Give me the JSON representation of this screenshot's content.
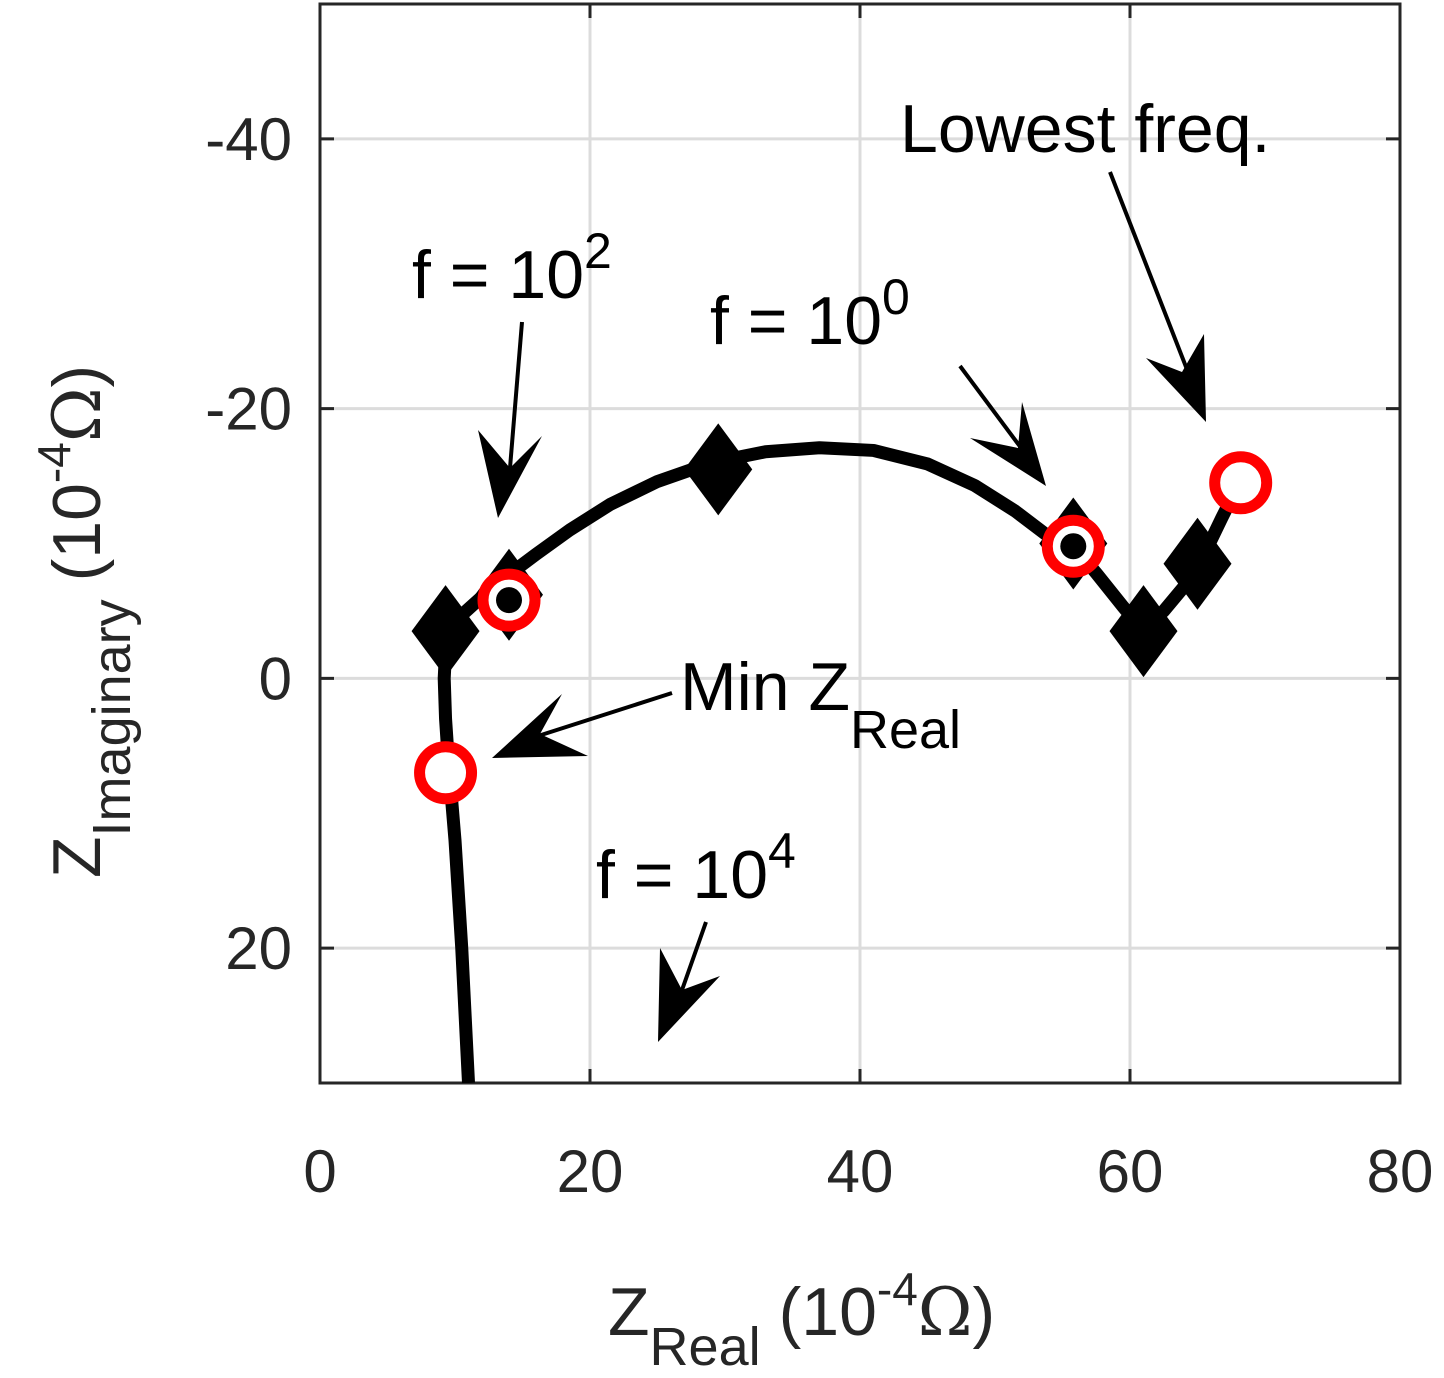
{
  "chart_data": {
    "type": "line",
    "title": "",
    "xlabel": {
      "base": "Z",
      "sub": "Real",
      "unit_open": "(10",
      "unit_exp": "-4",
      "unit_sym": "Ω",
      "unit_close": ")"
    },
    "ylabel": {
      "base": "Z",
      "sub": "Imaginary",
      "unit_open": "(10",
      "unit_exp": "-4",
      "unit_sym": "Ω",
      "unit_close": ")"
    },
    "xlim": [
      0,
      80
    ],
    "ylim": [
      30,
      -50
    ],
    "y_reversed": true,
    "grid": true,
    "x_ticks": [
      0,
      20,
      40,
      60,
      80
    ],
    "x_tick_labels": [
      "0",
      "20",
      "40",
      "60",
      "80"
    ],
    "y_ticks": [
      20,
      0,
      -20,
      -40
    ],
    "y_tick_labels": [
      "20",
      "0",
      "-20",
      "-40"
    ],
    "series": [
      {
        "style": "black thick line",
        "color": "#000000",
        "x": [
          11.0,
          10.5,
          10.0,
          9.5,
          9.3,
          9.2,
          9.3,
          9.8,
          10.5,
          11.5,
          12.5,
          14.0,
          16.0,
          18.5,
          21.5,
          25.0,
          29.0,
          33.0,
          37.0,
          41.0,
          45.0,
          48.5,
          51.5,
          54.0,
          55.8,
          57.5,
          59.5,
          61.0,
          62.5,
          64.0,
          65.5,
          66.8,
          68.0
        ],
        "y": [
          30,
          20,
          12,
          6,
          3,
          0,
          -2,
          -3.5,
          -4.7,
          -5.6,
          -6.5,
          -7.7,
          -9.2,
          -11.0,
          -12.9,
          -14.6,
          -16.0,
          -16.8,
          -17.1,
          -16.9,
          -15.9,
          -14.3,
          -12.4,
          -10.5,
          -9.8,
          -7.8,
          -5.3,
          -3.5,
          -5.0,
          -6.8,
          -9.2,
          -11.9,
          -14.3
        ]
      }
    ],
    "markers": {
      "diamonds": {
        "color": "#000000",
        "x": [
          9.3,
          14.0,
          29.5,
          55.8,
          61.0,
          65.0
        ],
        "y": [
          -3.5,
          -6.2,
          -15.5,
          -10.0,
          -3.5,
          -8.5
        ]
      },
      "red_rings": {
        "color": "#ff0000",
        "x": [
          9.3,
          14.0,
          55.8,
          68.2
        ],
        "y": [
          7.0,
          -5.8,
          -9.8,
          -14.5
        ]
      },
      "black_dots": {
        "color": "#000000",
        "x": [
          14.0,
          55.8
        ],
        "y": [
          -5.8,
          -9.8
        ]
      }
    },
    "annotations": [
      {
        "base": "f = 10",
        "sup": "2"
      },
      {
        "base": "f = 10",
        "sup": "0"
      },
      {
        "text": "Lowest freq."
      },
      {
        "base": "Min Z",
        "sub": "Real"
      },
      {
        "base": "f = 10",
        "sup": "4"
      }
    ]
  }
}
